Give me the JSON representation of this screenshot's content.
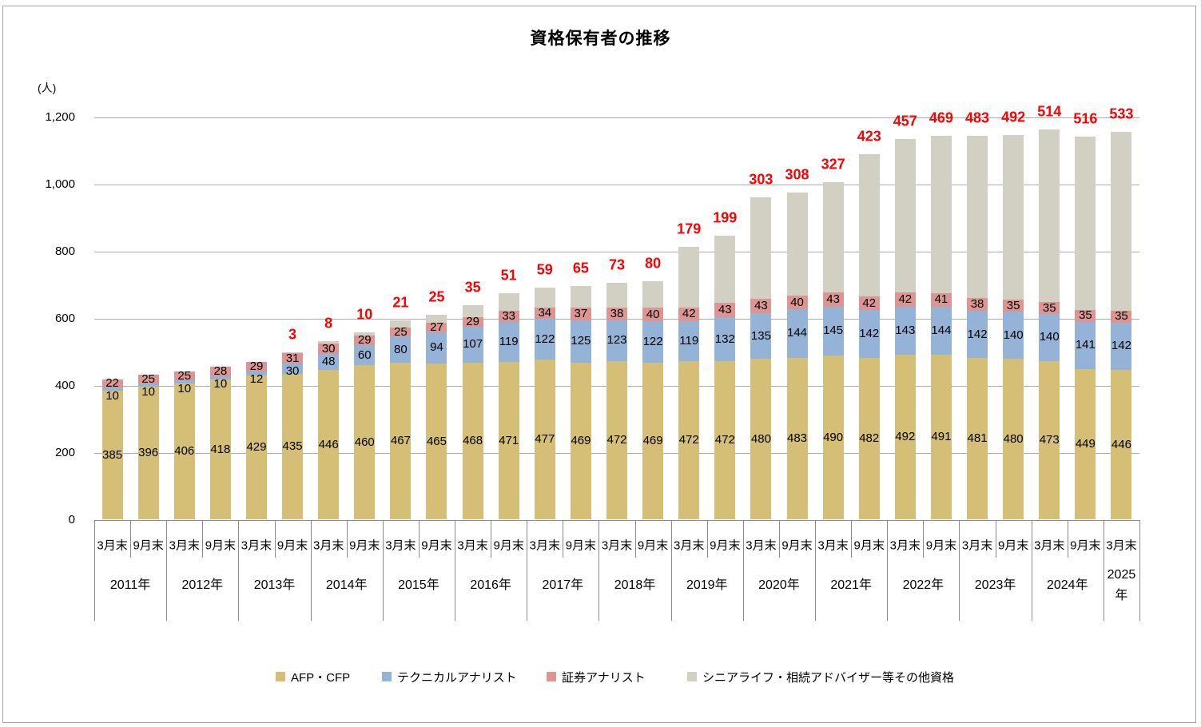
{
  "title": "資格保有者の推移",
  "y_axis": {
    "unit": "(人)",
    "tick_labels": [
      "1,200",
      "1,000",
      "800",
      "600",
      "400",
      "200",
      "0"
    ],
    "min": 0,
    "max": 1200,
    "step": 200
  },
  "chart_data": {
    "type": "bar",
    "stacked": true,
    "title": "資格保有者の推移",
    "ylabel": "(人)",
    "ylim": [
      0,
      1200
    ],
    "grid": true,
    "legend_position": "bottom",
    "x_periods": [
      "3月末",
      "9月末",
      "3月末",
      "9月末",
      "3月末",
      "9月末",
      "3月末",
      "9月末",
      "3月末",
      "9月末",
      "3月末",
      "9月末",
      "3月末",
      "9月末",
      "3月末",
      "9月末",
      "3月末",
      "9月末",
      "3月末",
      "9月末",
      "3月末",
      "9月末",
      "3月末",
      "9月末",
      "3月末",
      "9月末",
      "3月末",
      "9月末",
      "3月末"
    ],
    "x_years": [
      {
        "label": "2011年",
        "span": 2
      },
      {
        "label": "2012年",
        "span": 2
      },
      {
        "label": "2013年",
        "span": 2
      },
      {
        "label": "2014年",
        "span": 2
      },
      {
        "label": "2015年",
        "span": 2
      },
      {
        "label": "2016年",
        "span": 2
      },
      {
        "label": "2017年",
        "span": 2
      },
      {
        "label": "2018年",
        "span": 2
      },
      {
        "label": "2019年",
        "span": 2
      },
      {
        "label": "2020年",
        "span": 2
      },
      {
        "label": "2021年",
        "span": 2
      },
      {
        "label": "2022年",
        "span": 2
      },
      {
        "label": "2023年",
        "span": 2
      },
      {
        "label": "2024年",
        "span": 2
      },
      {
        "label": "2025年",
        "span": 1
      }
    ],
    "series": [
      {
        "name": "AFP・CFP",
        "color": "#D5BF76",
        "label_color": "#000000",
        "values": [
          385,
          396,
          406,
          418,
          429,
          435,
          446,
          460,
          467,
          465,
          468,
          471,
          477,
          469,
          472,
          469,
          472,
          472,
          480,
          483,
          490,
          482,
          492,
          491,
          481,
          480,
          473,
          449,
          446
        ]
      },
      {
        "name": "テクニカルアナリスト",
        "color": "#95B3D7",
        "label_color": "#000000",
        "values": [
          10,
          10,
          10,
          10,
          12,
          30,
          48,
          60,
          80,
          94,
          107,
          119,
          122,
          125,
          123,
          122,
          119,
          132,
          135,
          144,
          145,
          142,
          143,
          144,
          142,
          140,
          140,
          141,
          142
        ]
      },
      {
        "name": "証券アナリスト",
        "color": "#DD9593",
        "label_color": "#000000",
        "values": [
          22,
          25,
          25,
          28,
          29,
          31,
          30,
          29,
          25,
          27,
          29,
          33,
          34,
          37,
          38,
          40,
          42,
          43,
          43,
          40,
          43,
          42,
          42,
          41,
          38,
          35,
          35,
          35,
          35
        ]
      },
      {
        "name": "シニアライフ・相続アドバイザー等その他資格",
        "color": "#D2CFC3",
        "label_color": "#FF0000",
        "label_position": "above",
        "values": [
          0,
          0,
          0,
          0,
          0,
          3,
          8,
          10,
          21,
          25,
          35,
          51,
          59,
          65,
          73,
          80,
          179,
          199,
          303,
          308,
          327,
          423,
          457,
          469,
          483,
          492,
          514,
          516,
          533
        ]
      }
    ],
    "grid_color": "#ABABAB",
    "axis_color": "#8A8A8A"
  }
}
